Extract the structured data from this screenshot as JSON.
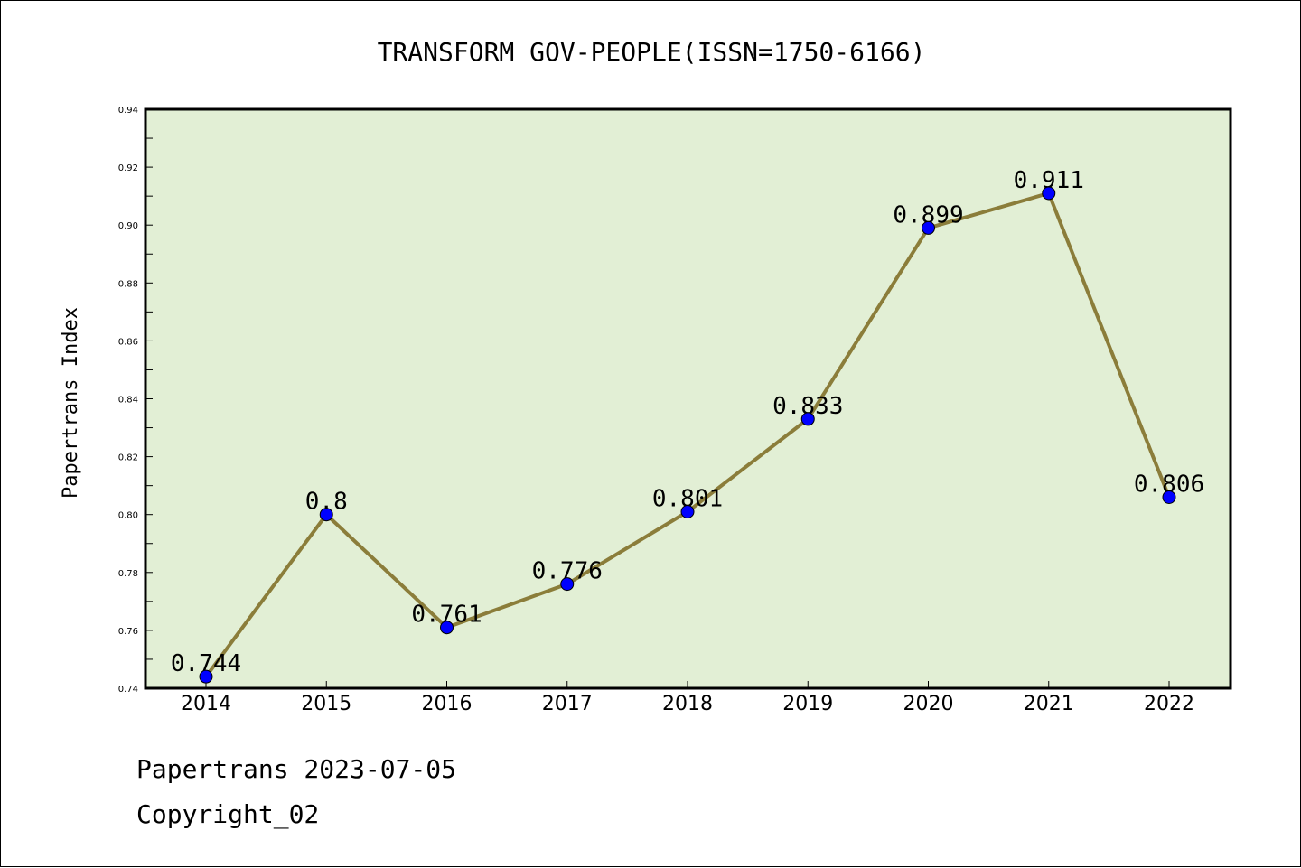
{
  "chart_data": {
    "type": "line",
    "title": "TRANSFORM GOV-PEOPLE(ISSN=1750-6166)",
    "xlabel": "",
    "ylabel": "Papertrans Index",
    "categories": [
      "2014",
      "2015",
      "2016",
      "2017",
      "2018",
      "2019",
      "2020",
      "2021",
      "2022"
    ],
    "series": [
      {
        "values": [
          0.744,
          0.8,
          0.761,
          0.776,
          0.801,
          0.833,
          0.899,
          0.911,
          0.806
        ],
        "data_labels": [
          "0.744",
          "0.8",
          "0.761",
          "0.776",
          "0.801",
          "0.833",
          "0.899",
          "0.911",
          "0.806"
        ]
      }
    ],
    "ylim": [
      0.74,
      0.94
    ],
    "yticks": [
      "0.74",
      "0.76",
      "0.78",
      "0.80",
      "0.82",
      "0.84",
      "0.86",
      "0.88",
      "0.90",
      "0.92",
      "0.94"
    ],
    "grid": false,
    "colors": {
      "plot_background": "#e2efd5",
      "line": "#8b7d3a",
      "marker": "#0000ff",
      "axes": "#000000"
    }
  },
  "footer": {
    "line1": "Papertrans 2023-07-05",
    "line2": "Copyright_02"
  }
}
